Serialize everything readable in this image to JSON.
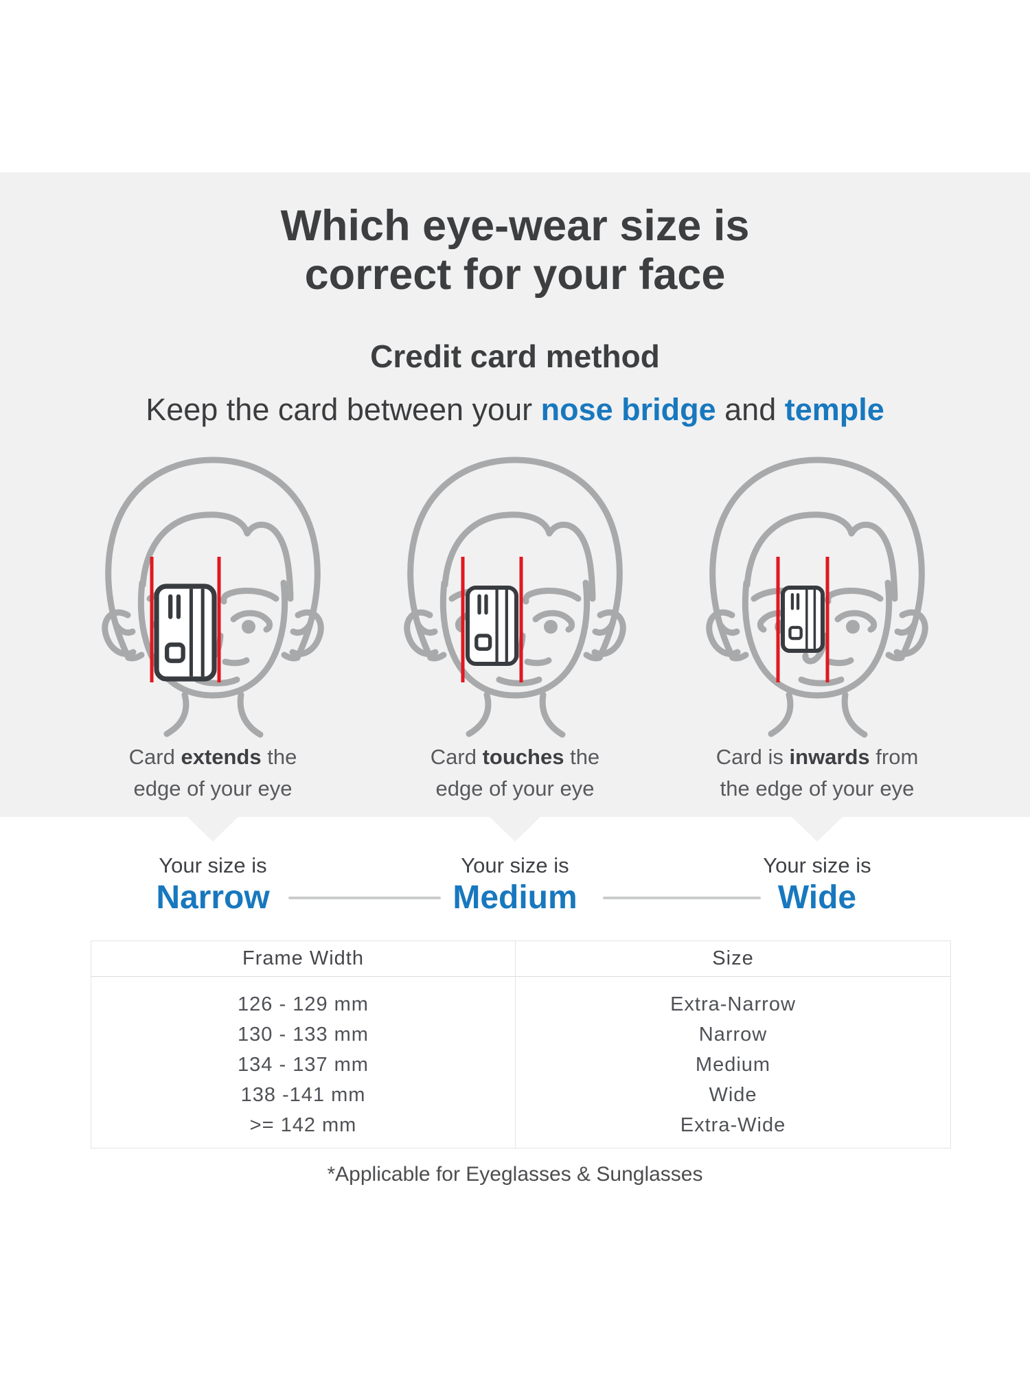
{
  "appearance": {
    "background_gray": "#f1f1f2",
    "accent_blue": "#1878be",
    "marker_red": "#e0181f",
    "face_gray": "#a8a9ab",
    "card_outline": "#383b3f",
    "title_color": "#3d3e40",
    "connector_gray": "#cacbcc",
    "table_border": "#e3e3e4"
  },
  "header": {
    "title_line1": "Which eye-wear size is",
    "title_line2": "correct for your face",
    "subtitle": "Credit card method",
    "instruction": {
      "prefix": "Keep the card between your ",
      "highlight1": "nose bridge",
      "middle": " and ",
      "highlight2": "temple"
    }
  },
  "columns": [
    {
      "caption_pre": "Card ",
      "caption_bold": "extends",
      "caption_post": " the",
      "caption_line2": "edge of your eye",
      "size_label": "Your size is",
      "size_value": "Narrow"
    },
    {
      "caption_pre": "Card ",
      "caption_bold": "touches",
      "caption_post": " the",
      "caption_line2": "edge of your eye",
      "size_label": "Your size is",
      "size_value": "Medium"
    },
    {
      "caption_pre": "Card is ",
      "caption_bold": "inwards",
      "caption_post": " from",
      "caption_line2": "the edge of your eye",
      "size_label": "Your size is",
      "size_value": "Wide"
    }
  ],
  "table": {
    "headers": [
      "Frame Width",
      "Size"
    ],
    "rows": [
      [
        "126 - 129 mm",
        "Extra-Narrow"
      ],
      [
        "130 - 133 mm",
        "Narrow"
      ],
      [
        "134 - 137 mm",
        "Medium"
      ],
      [
        "138 -141 mm",
        "Wide"
      ],
      [
        ">= 142 mm",
        "Extra-Wide"
      ]
    ]
  },
  "footnote": "*Applicable for Eyeglasses & Sunglasses"
}
